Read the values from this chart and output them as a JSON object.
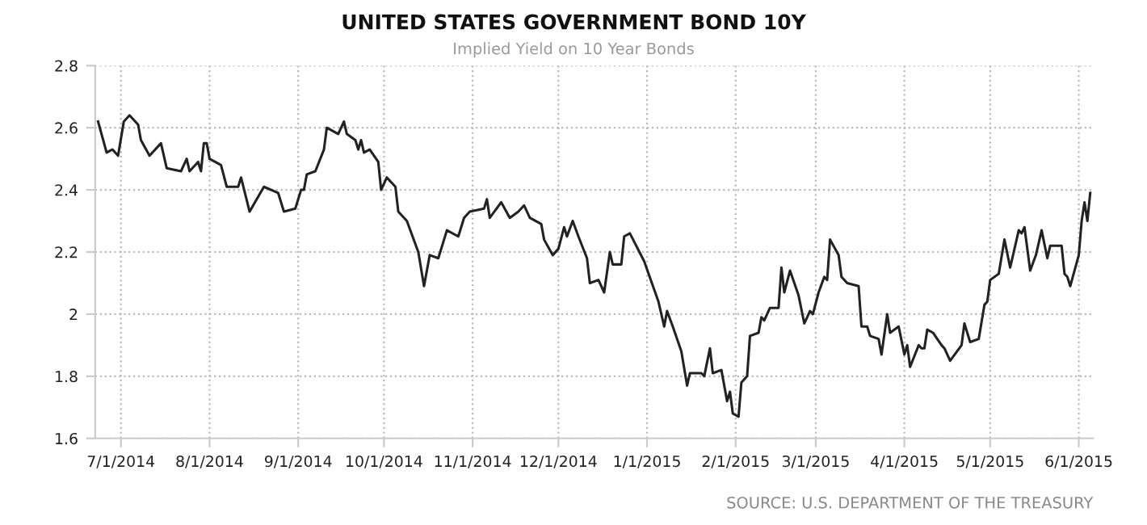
{
  "chart_data": {
    "type": "line",
    "title": "UNITED STATES GOVERNMENT BOND 10Y",
    "subtitle": "Implied Yield on 10 Year Bonds",
    "annotations": [
      "SOURCE: U.S. DEPARTMENT OF THE TREASURY"
    ],
    "x": [
      "2014-06-23",
      "2014-06-26",
      "2014-06-28",
      "2014-06-30",
      "2014-07-02",
      "2014-07-04",
      "2014-07-07",
      "2014-07-08",
      "2014-07-11",
      "2014-07-15",
      "2014-07-17",
      "2014-07-22",
      "2014-07-24",
      "2014-07-25",
      "2014-07-28",
      "2014-07-29",
      "2014-07-30",
      "2014-07-31",
      "2014-08-01",
      "2014-08-05",
      "2014-08-07",
      "2014-08-11",
      "2014-08-12",
      "2014-08-15",
      "2014-08-20",
      "2014-08-25",
      "2014-08-27",
      "2014-08-31",
      "2014-09-02",
      "2014-09-03",
      "2014-09-04",
      "2014-09-07",
      "2014-09-10",
      "2014-09-11",
      "2014-09-15",
      "2014-09-17",
      "2014-09-18",
      "2014-09-21",
      "2014-09-22",
      "2014-09-23",
      "2014-09-24",
      "2014-09-26",
      "2014-09-29",
      "2014-09-30",
      "2014-10-02",
      "2014-10-05",
      "2014-10-06",
      "2014-10-09",
      "2014-10-13",
      "2014-10-15",
      "2014-10-17",
      "2014-10-20",
      "2014-10-23",
      "2014-10-27",
      "2014-10-29",
      "2014-10-31",
      "2014-11-05",
      "2014-11-06",
      "2014-11-07",
      "2014-11-11",
      "2014-11-14",
      "2014-11-17",
      "2014-11-19",
      "2014-11-21",
      "2014-11-25",
      "2014-11-26",
      "2014-11-29",
      "2014-12-01",
      "2014-12-03",
      "2014-12-04",
      "2014-12-06",
      "2014-12-08",
      "2014-12-11",
      "2014-12-12",
      "2014-12-15",
      "2014-12-17",
      "2014-12-19",
      "2014-12-20",
      "2014-12-23",
      "2014-12-24",
      "2014-12-26",
      "2014-12-31",
      "2015-01-05",
      "2015-01-07",
      "2015-01-08",
      "2015-01-10",
      "2015-01-13",
      "2015-01-15",
      "2015-01-16",
      "2015-01-20",
      "2015-01-21",
      "2015-01-23",
      "2015-01-24",
      "2015-01-27",
      "2015-01-29",
      "2015-01-30",
      "2015-01-31",
      "2015-02-02",
      "2015-02-03",
      "2015-02-05",
      "2015-02-06",
      "2015-02-09",
      "2015-02-10",
      "2015-02-11",
      "2015-02-12",
      "2015-02-13",
      "2015-02-16",
      "2015-02-17",
      "2015-02-18",
      "2015-02-20",
      "2015-02-23",
      "2015-02-25",
      "2015-02-27",
      "2015-02-28",
      "2015-03-02",
      "2015-03-04",
      "2015-03-05",
      "2015-03-06",
      "2015-03-09",
      "2015-03-10",
      "2015-03-12",
      "2015-03-16",
      "2015-03-17",
      "2015-03-19",
      "2015-03-20",
      "2015-03-23",
      "2015-03-24",
      "2015-03-26",
      "2015-03-27",
      "2015-03-30",
      "2015-04-01",
      "2015-04-02",
      "2015-04-03",
      "2015-04-06",
      "2015-04-07",
      "2015-04-08",
      "2015-04-09",
      "2015-04-11",
      "2015-04-14",
      "2015-04-15",
      "2015-04-17",
      "2015-04-21",
      "2015-04-22",
      "2015-04-24",
      "2015-04-27",
      "2015-04-29",
      "2015-04-30",
      "2015-05-01",
      "2015-05-04",
      "2015-05-06",
      "2015-05-08",
      "2015-05-11",
      "2015-05-12",
      "2015-05-13",
      "2015-05-15",
      "2015-05-17",
      "2015-05-19",
      "2015-05-21",
      "2015-05-22",
      "2015-05-26",
      "2015-05-27",
      "2015-05-28",
      "2015-05-29",
      "2015-06-01",
      "2015-06-02",
      "2015-06-03",
      "2015-06-04",
      "2015-06-05"
    ],
    "series": [
      {
        "color": "#222222",
        "values": [
          2.62,
          2.52,
          2.53,
          2.51,
          2.62,
          2.64,
          2.61,
          2.56,
          2.51,
          2.55,
          2.47,
          2.46,
          2.5,
          2.46,
          2.49,
          2.46,
          2.55,
          2.55,
          2.5,
          2.48,
          2.41,
          2.41,
          2.44,
          2.33,
          2.41,
          2.39,
          2.33,
          2.34,
          2.4,
          2.4,
          2.45,
          2.46,
          2.53,
          2.6,
          2.58,
          2.62,
          2.58,
          2.56,
          2.53,
          2.56,
          2.52,
          2.53,
          2.49,
          2.4,
          2.44,
          2.41,
          2.33,
          2.3,
          2.2,
          2.09,
          2.19,
          2.18,
          2.27,
          2.25,
          2.31,
          2.33,
          2.34,
          2.37,
          2.31,
          2.36,
          2.31,
          2.33,
          2.35,
          2.31,
          2.29,
          2.24,
          2.19,
          2.21,
          2.28,
          2.25,
          2.3,
          2.25,
          2.18,
          2.1,
          2.11,
          2.07,
          2.2,
          2.16,
          2.16,
          2.25,
          2.26,
          2.17,
          2.04,
          1.96,
          2.01,
          1.96,
          1.88,
          1.77,
          1.81,
          1.81,
          1.8,
          1.89,
          1.81,
          1.82,
          1.72,
          1.75,
          1.68,
          1.67,
          1.78,
          1.8,
          1.93,
          1.94,
          1.99,
          1.98,
          2.0,
          2.02,
          2.02,
          2.15,
          2.07,
          2.14,
          2.06,
          1.97,
          2.01,
          2.0,
          2.07,
          2.12,
          2.11,
          2.24,
          2.19,
          2.12,
          2.1,
          2.09,
          1.96,
          1.96,
          1.93,
          1.92,
          1.87,
          2.0,
          1.94,
          1.96,
          1.87,
          1.9,
          1.83,
          1.9,
          1.89,
          1.89,
          1.95,
          1.94,
          1.9,
          1.89,
          1.85,
          1.9,
          1.97,
          1.91,
          1.92,
          2.03,
          2.04,
          2.11,
          2.13,
          2.24,
          2.15,
          2.27,
          2.26,
          2.28,
          2.14,
          2.19,
          2.27,
          2.18,
          2.22,
          2.22,
          2.13,
          2.12,
          2.09,
          2.19,
          2.3,
          2.36,
          2.3,
          2.39
        ]
      }
    ],
    "xlim": [
      "2014-06-22",
      "2015-06-06"
    ],
    "xticks": [
      {
        "value": "2014-07-01",
        "label": "7/1/2014"
      },
      {
        "value": "2014-08-01",
        "label": "8/1/2014"
      },
      {
        "value": "2014-09-01",
        "label": "9/1/2014"
      },
      {
        "value": "2014-10-01",
        "label": "10/1/2014"
      },
      {
        "value": "2014-11-01",
        "label": "11/1/2014"
      },
      {
        "value": "2014-12-01",
        "label": "12/1/2014"
      },
      {
        "value": "2015-01-01",
        "label": "1/1/2015"
      },
      {
        "value": "2015-02-01",
        "label": "2/1/2015"
      },
      {
        "value": "2015-03-01",
        "label": "3/1/2015"
      },
      {
        "value": "2015-04-01",
        "label": "4/1/2015"
      },
      {
        "value": "2015-05-01",
        "label": "5/1/2015"
      },
      {
        "value": "2015-06-01",
        "label": "6/1/2015"
      }
    ],
    "ylim": [
      1.6,
      2.8
    ],
    "yticks": [
      {
        "value": 1.6,
        "label": "1.6"
      },
      {
        "value": 1.8,
        "label": "1.8"
      },
      2,
      {
        "value": 2.2,
        "label": "2.2"
      },
      {
        "value": 2.4,
        "label": "2.4"
      },
      {
        "value": 2.6,
        "label": "2.6"
      },
      {
        "value": 2.8,
        "label": "2.8"
      }
    ],
    "grid": true,
    "line_style": "solid"
  }
}
